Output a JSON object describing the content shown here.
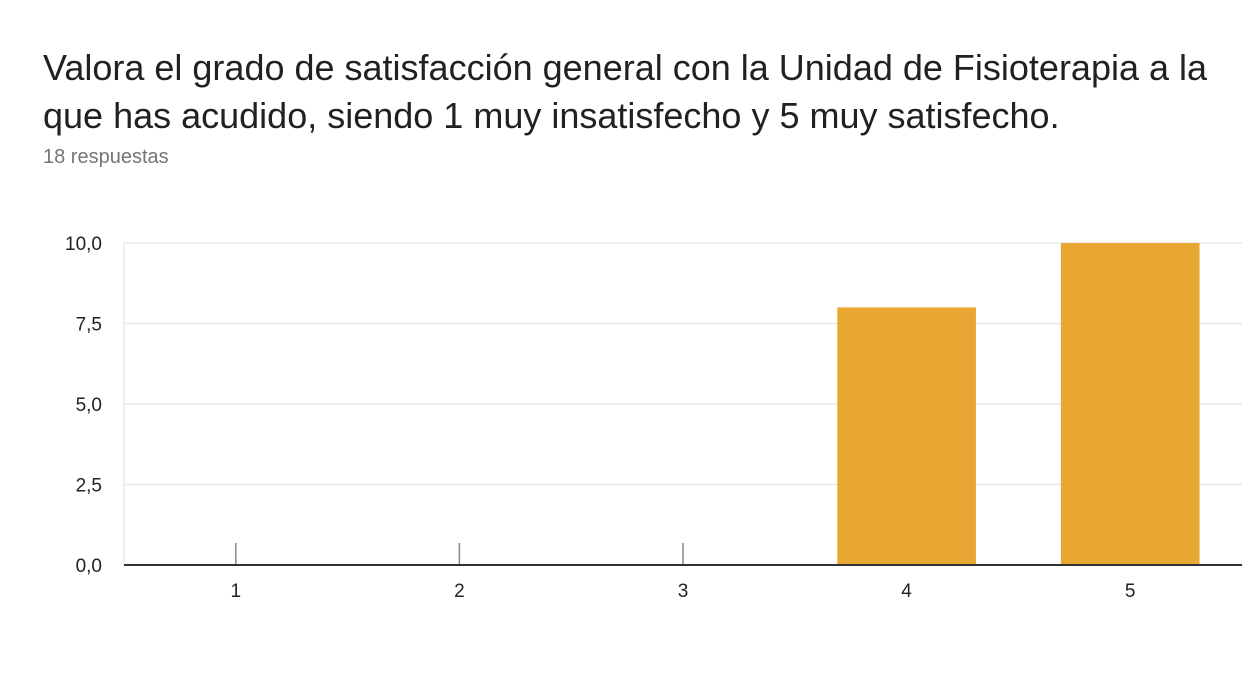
{
  "question": {
    "title": "Valora el grado de satisfacción general con la Unidad de Fisioterapia a la que has acudido, siendo 1 muy insatisfecho y 5 muy satisfecho.",
    "response_count": "18 respuestas"
  },
  "chart_data": {
    "type": "bar",
    "title": "",
    "xlabel": "",
    "ylabel": "",
    "categories": [
      "1",
      "2",
      "3",
      "4",
      "5"
    ],
    "values": [
      0,
      0,
      0,
      8,
      10
    ],
    "ylim": [
      0,
      10
    ],
    "yticks": [
      0,
      2.5,
      5,
      7.5,
      10
    ],
    "ytick_labels": [
      "0,0",
      "2,5",
      "5,0",
      "7,5",
      "10,0"
    ],
    "grid": true,
    "legend": "none",
    "bar_color": "#E8A733",
    "grid_color": "#E8E8E8",
    "axis_color": "#333333"
  }
}
